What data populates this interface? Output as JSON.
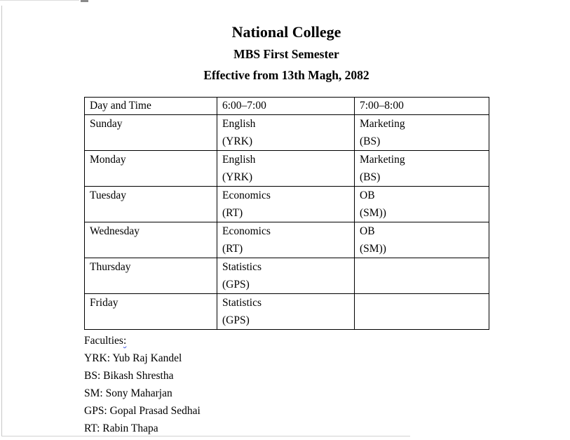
{
  "document": {
    "title": "National College",
    "subtitle": "MBS First Semester",
    "effective_note": "Effective from 13th Magh, 2082"
  },
  "timetable": {
    "headers": [
      "Day and Time",
      "6:00–7:00",
      "7:00–8:00"
    ],
    "rows": [
      {
        "day": "Sunday",
        "slot1_subject": "English",
        "slot1_teacher": "(YRK)",
        "slot2_subject": "Marketing",
        "slot2_teacher": "(BS)"
      },
      {
        "day": "Monday",
        "slot1_subject": "English",
        "slot1_teacher": "(YRK)",
        "slot2_subject": "Marketing",
        "slot2_teacher": "(BS)"
      },
      {
        "day": "Tuesday",
        "slot1_subject": "Economics",
        "slot1_teacher": "(RT)",
        "slot2_subject": "OB",
        "slot2_teacher": "(SM))"
      },
      {
        "day": "Wednesday",
        "slot1_subject": "Economics",
        "slot1_teacher": "(RT)",
        "slot2_subject": "OB",
        "slot2_teacher": "(SM))"
      },
      {
        "day": "Thursday",
        "slot1_subject": "Statistics",
        "slot1_teacher": "(GPS)",
        "slot2_subject": "",
        "slot2_teacher": ""
      },
      {
        "day": "Friday",
        "slot1_subject": "Statistics",
        "slot1_teacher": "(GPS)",
        "slot2_subject": "",
        "slot2_teacher": ""
      }
    ]
  },
  "faculties": {
    "heading_text": "Faculties",
    "heading_colon": ":",
    "items": [
      "YRK: Yub Raj Kandel",
      "BS: Bikash Shrestha",
      "SM: Sony Maharjan",
      "GPS: Gopal Prasad Sedhai",
      "RT: Rabin Thapa"
    ]
  }
}
